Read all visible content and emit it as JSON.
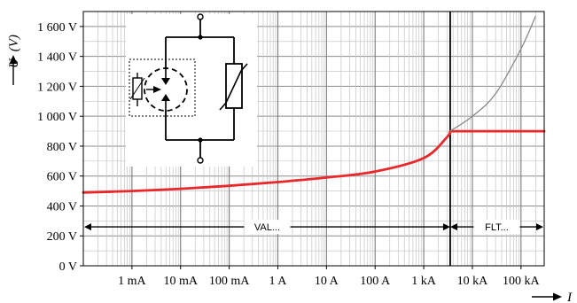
{
  "chart_data": {
    "type": "line",
    "title": "",
    "ylabel": "U",
    "yunit": "(V)",
    "xlabel": "I",
    "xscale": "log",
    "ylim": [
      0,
      1700
    ],
    "xlim": [
      0.0001,
      300000
    ],
    "y_ticks": [
      {
        "value": 0,
        "label": "0 V"
      },
      {
        "value": 200,
        "label": "200 V"
      },
      {
        "value": 400,
        "label": "400 V"
      },
      {
        "value": 600,
        "label": "600 V"
      },
      {
        "value": 800,
        "label": "800 V"
      },
      {
        "value": 1000,
        "label": "1 000 V"
      },
      {
        "value": 1200,
        "label": "1 200 V"
      },
      {
        "value": 1400,
        "label": "1 400 V"
      },
      {
        "value": 1600,
        "label": "1 600 V"
      }
    ],
    "x_ticks": [
      {
        "value": 0.001,
        "label": "1 mA"
      },
      {
        "value": 0.01,
        "label": "10 mA"
      },
      {
        "value": 0.1,
        "label": "100 mA"
      },
      {
        "value": 1,
        "label": "1 A"
      },
      {
        "value": 10,
        "label": "10 A"
      },
      {
        "value": 100,
        "label": "100 A"
      },
      {
        "value": 1000,
        "label": "1 kA"
      },
      {
        "value": 10000,
        "label": "10 kA"
      },
      {
        "value": 100000,
        "label": "100 kA"
      }
    ],
    "grid": true,
    "series": [
      {
        "color": "#e8282b",
        "x": [
          0.0001,
          0.001,
          0.01,
          0.1,
          1,
          10,
          100,
          1000,
          3000,
          3500,
          10000,
          100000,
          300000
        ],
        "y": [
          490,
          500,
          515,
          535,
          560,
          590,
          630,
          720,
          860,
          900,
          900,
          900,
          900
        ]
      },
      {
        "color": "#8a8a8a",
        "x": [
          3500,
          10000,
          30000,
          100000,
          200000
        ],
        "y": [
          900,
          1000,
          1150,
          1450,
          1670
        ]
      }
    ],
    "threshold_x": 3500,
    "annotations": [
      {
        "label": "VAL...",
        "from": 0.0001,
        "to": 3500,
        "y": 260
      },
      {
        "label": "FLT...",
        "from": 3500,
        "to": 300000,
        "y": 260
      }
    ]
  }
}
